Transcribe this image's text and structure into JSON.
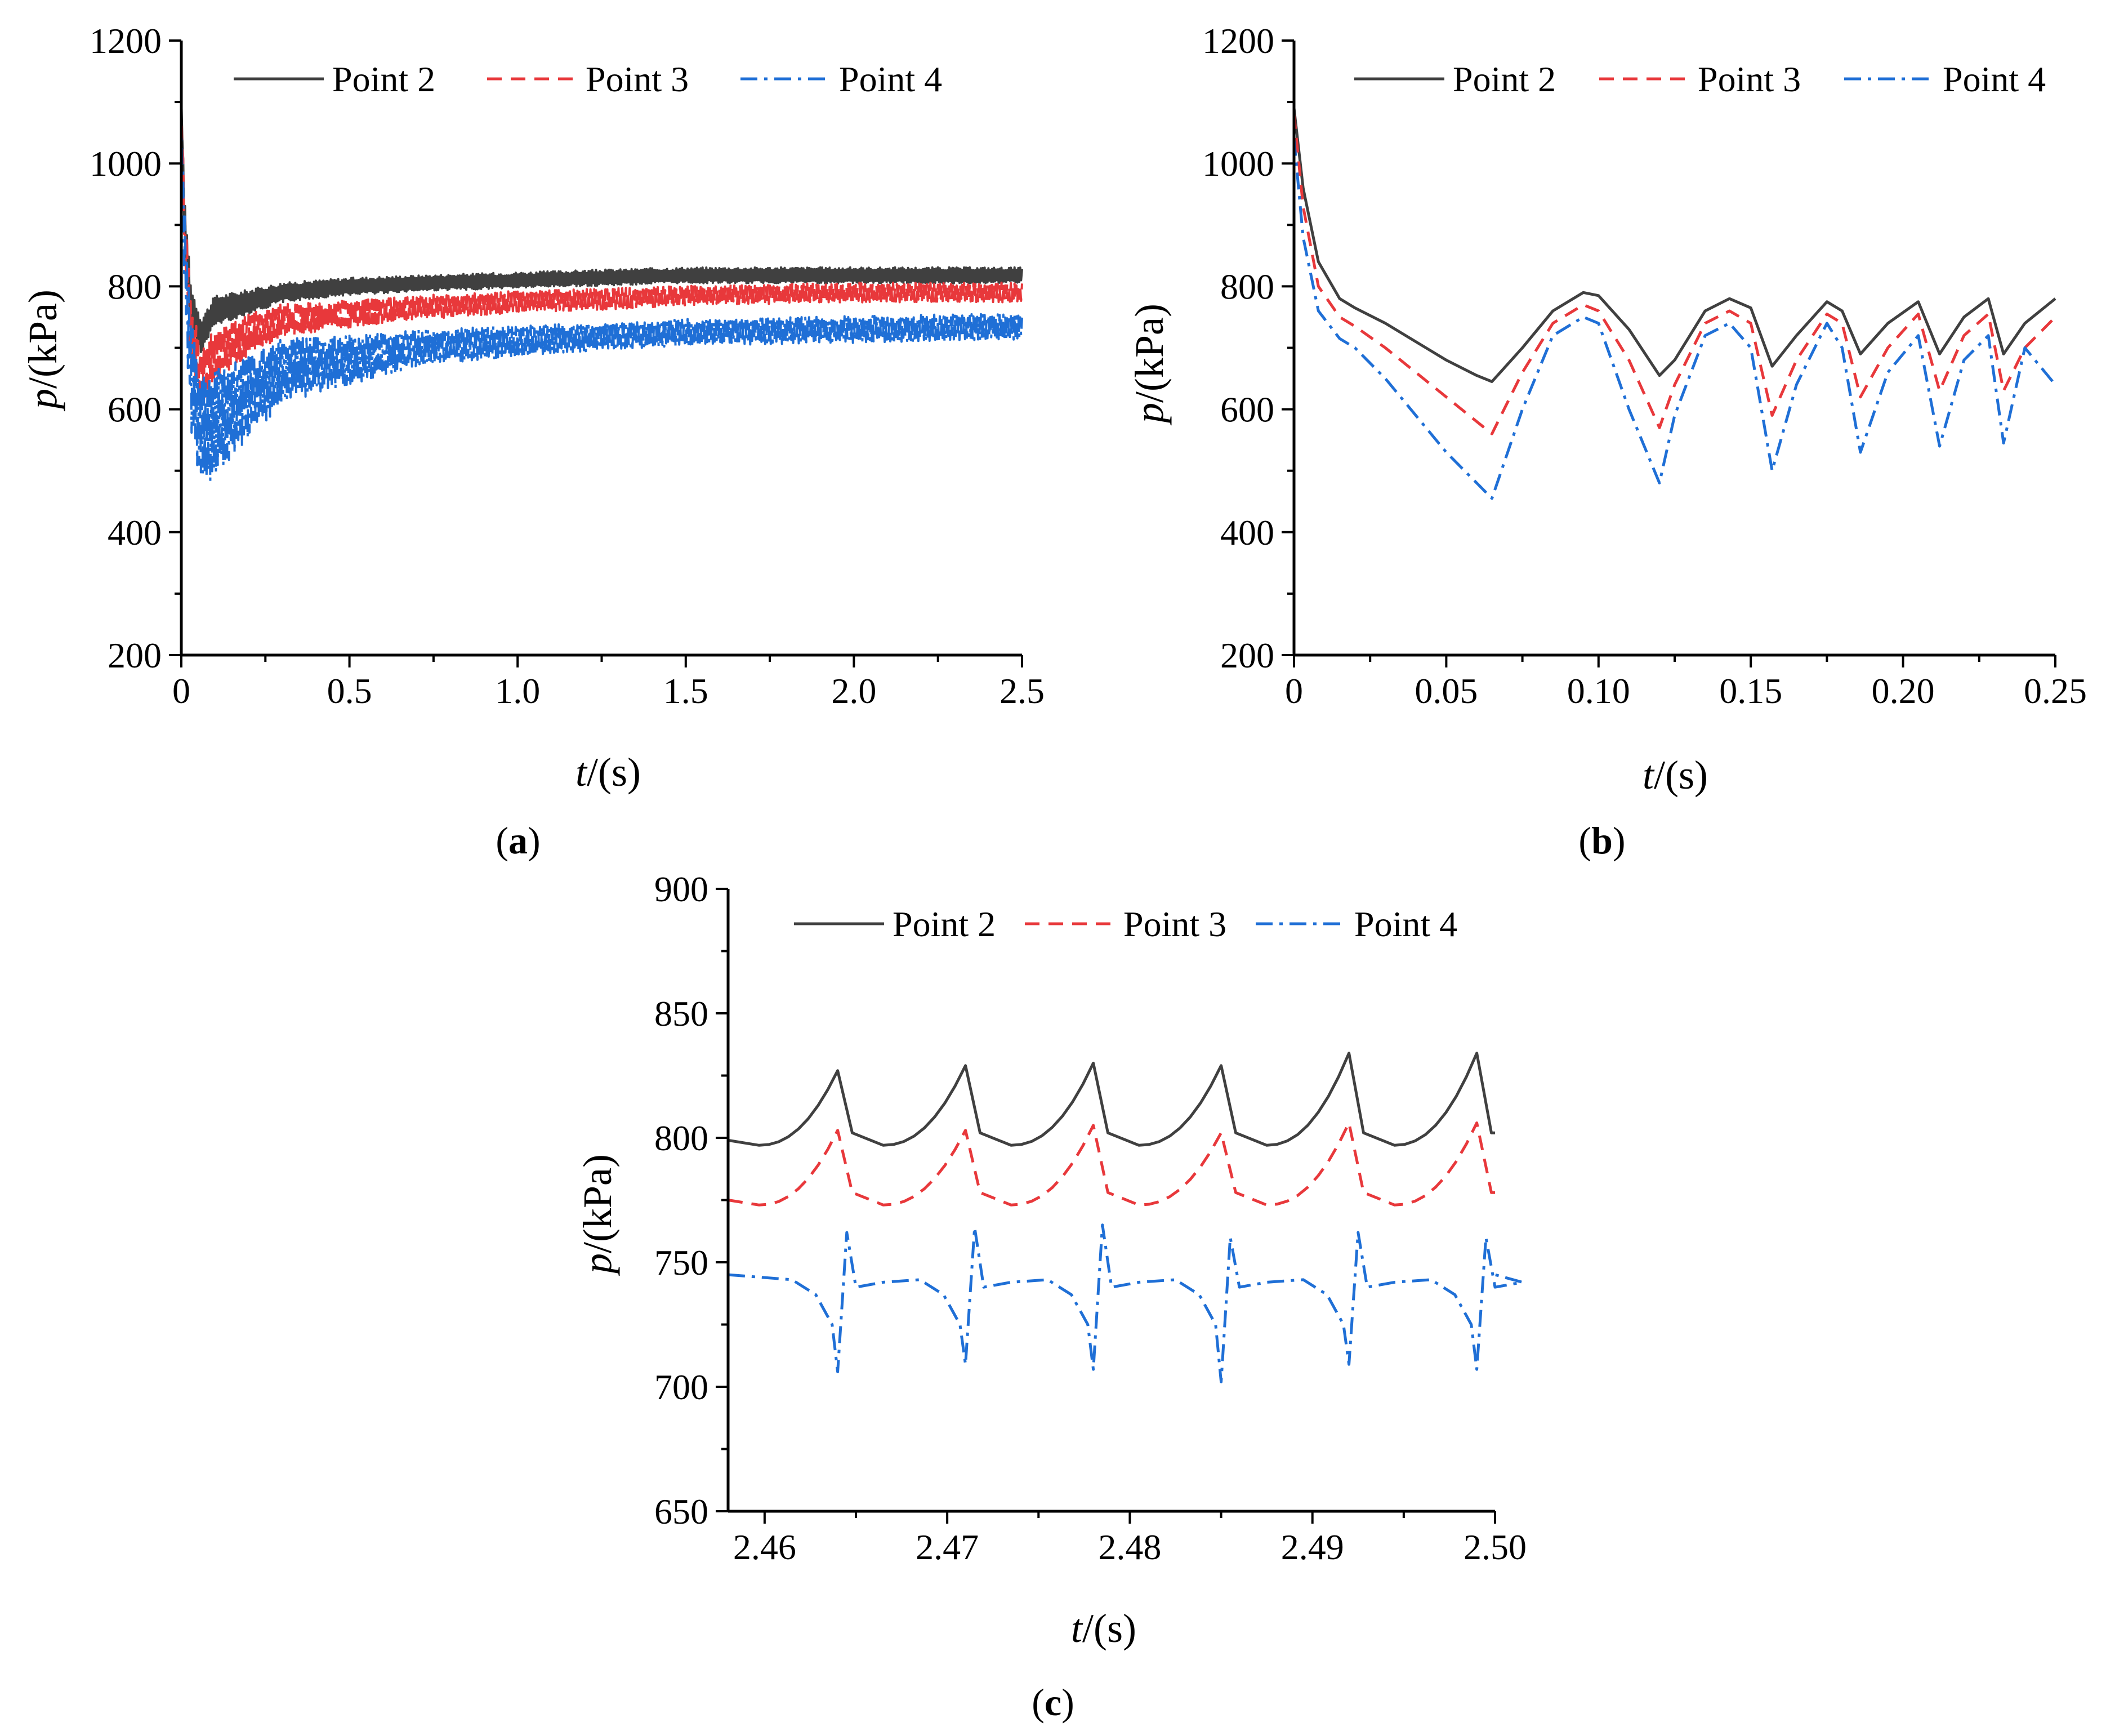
{
  "chart_data": [
    {
      "panel": "a",
      "type": "line",
      "xlabel": {
        "italic": "t",
        "rest": "/(s)"
      },
      "ylabel": {
        "italic": "p",
        "rest": "/(kPa)"
      },
      "xlim": [
        0,
        2.5
      ],
      "ylim": [
        200,
        1200
      ],
      "xticks": [
        0,
        0.5,
        1.0,
        1.5,
        2.0,
        2.5
      ],
      "xtick_labels": [
        "0",
        "0.5",
        "1.0",
        "1.5",
        "2.0",
        "2.5"
      ],
      "yticks": [
        200,
        400,
        600,
        800,
        1000,
        1200
      ],
      "ytick_labels": [
        "200",
        "400",
        "600",
        "800",
        "1000",
        "1200"
      ],
      "legend": [
        "Point 2",
        "Point 3",
        "Point 4"
      ],
      "series": [
        {
          "name": "Point 2",
          "color": "#404040",
          "dash": "solid",
          "x": [
            0,
            0.01,
            0.03,
            0.06,
            0.1,
            0.2,
            0.3,
            0.5,
            0.7,
            1.0,
            1.3,
            1.5,
            2.0,
            2.5
          ],
          "y": [
            1110,
            900,
            760,
            720,
            760,
            775,
            790,
            800,
            805,
            810,
            815,
            818,
            818,
            818
          ],
          "amplitude": [
            0,
            40,
            40,
            30,
            25,
            20,
            16,
            14,
            13,
            13,
            13,
            13,
            13,
            13
          ]
        },
        {
          "name": "Point 3",
          "color": "#e8383b",
          "dash": "dashed",
          "x": [
            0,
            0.01,
            0.03,
            0.06,
            0.1,
            0.2,
            0.3,
            0.5,
            0.7,
            1.0,
            1.3,
            1.5,
            2.0,
            2.5
          ],
          "y": [
            1100,
            880,
            720,
            650,
            690,
            720,
            745,
            755,
            765,
            775,
            780,
            785,
            790,
            790
          ],
          "amplitude": [
            0,
            60,
            55,
            50,
            45,
            35,
            28,
            22,
            20,
            18,
            17,
            16,
            16,
            16
          ]
        },
        {
          "name": "Point 4",
          "color": "#1f6fd6",
          "dash": "dashdot",
          "x": [
            0,
            0.01,
            0.03,
            0.06,
            0.1,
            0.2,
            0.3,
            0.5,
            0.7,
            1.0,
            1.3,
            1.5,
            2.0,
            2.5
          ],
          "y": [
            1080,
            850,
            650,
            560,
            580,
            620,
            660,
            680,
            700,
            712,
            720,
            725,
            730,
            735
          ],
          "amplitude": [
            0,
            90,
            90,
            100,
            90,
            70,
            55,
            40,
            30,
            25,
            22,
            22,
            22,
            22
          ]
        }
      ]
    },
    {
      "panel": "b",
      "type": "line",
      "xlabel": {
        "italic": "t",
        "rest": "/(s)"
      },
      "ylabel": {
        "italic": "p",
        "rest": "/(kPa)"
      },
      "xlim": [
        0,
        0.25
      ],
      "ylim": [
        200,
        1200
      ],
      "xticks": [
        0,
        0.05,
        0.1,
        0.15,
        0.2,
        0.25
      ],
      "xtick_labels": [
        "0",
        "0.05",
        "0.10",
        "0.15",
        "0.20",
        "0.25"
      ],
      "yticks": [
        200,
        400,
        600,
        800,
        1000,
        1200
      ],
      "ytick_labels": [
        "200",
        "400",
        "600",
        "800",
        "1000",
        "1200"
      ],
      "legend": [
        "Point 2",
        "Point 3",
        "Point 4"
      ],
      "series": [
        {
          "name": "Point 2",
          "color": "#404040",
          "dash": "solid",
          "x": [
            0,
            0.003,
            0.008,
            0.015,
            0.02,
            0.03,
            0.04,
            0.05,
            0.06,
            0.065,
            0.075,
            0.085,
            0.095,
            0.1,
            0.11,
            0.12,
            0.125,
            0.135,
            0.143,
            0.15,
            0.157,
            0.165,
            0.175,
            0.18,
            0.186,
            0.195,
            0.205,
            0.212,
            0.22,
            0.228,
            0.233,
            0.24,
            0.25
          ],
          "y": [
            1090,
            960,
            840,
            780,
            765,
            740,
            710,
            680,
            655,
            645,
            700,
            760,
            790,
            785,
            730,
            655,
            680,
            760,
            780,
            765,
            670,
            720,
            775,
            760,
            690,
            740,
            775,
            690,
            750,
            780,
            690,
            740,
            780
          ]
        },
        {
          "name": "Point 3",
          "color": "#e8383b",
          "dash": "dashed",
          "x": [
            0,
            0.003,
            0.008,
            0.015,
            0.02,
            0.03,
            0.04,
            0.05,
            0.06,
            0.065,
            0.075,
            0.085,
            0.095,
            0.1,
            0.11,
            0.12,
            0.125,
            0.135,
            0.143,
            0.15,
            0.157,
            0.165,
            0.175,
            0.18,
            0.186,
            0.195,
            0.205,
            0.212,
            0.22,
            0.228,
            0.233,
            0.24,
            0.25
          ],
          "y": [
            1080,
            930,
            800,
            750,
            735,
            700,
            660,
            620,
            580,
            560,
            660,
            740,
            770,
            760,
            680,
            570,
            640,
            740,
            760,
            740,
            590,
            680,
            755,
            740,
            620,
            700,
            755,
            630,
            720,
            755,
            630,
            700,
            750
          ]
        },
        {
          "name": "Point 4",
          "color": "#1f6fd6",
          "dash": "dashdot",
          "x": [
            0,
            0.003,
            0.008,
            0.015,
            0.02,
            0.03,
            0.04,
            0.05,
            0.06,
            0.065,
            0.075,
            0.085,
            0.095,
            0.1,
            0.11,
            0.12,
            0.125,
            0.135,
            0.143,
            0.15,
            0.157,
            0.165,
            0.175,
            0.18,
            0.186,
            0.195,
            0.205,
            0.212,
            0.22,
            0.228,
            0.233,
            0.24,
            0.25
          ],
          "y": [
            1040,
            880,
            760,
            715,
            700,
            650,
            590,
            530,
            480,
            455,
            600,
            720,
            750,
            740,
            600,
            480,
            590,
            720,
            740,
            700,
            500,
            640,
            740,
            700,
            530,
            660,
            720,
            540,
            680,
            720,
            545,
            700,
            640
          ]
        }
      ]
    },
    {
      "panel": "c",
      "type": "line",
      "xlabel": {
        "italic": "t",
        "rest": "/(s)"
      },
      "ylabel": {
        "italic": "p",
        "rest": "/(kPa)"
      },
      "xlim": [
        2.458,
        2.5
      ],
      "ylim": [
        650,
        900
      ],
      "xticks": [
        2.46,
        2.47,
        2.48,
        2.49,
        2.5
      ],
      "xtick_labels": [
        "2.46",
        "2.47",
        "2.48",
        "2.49",
        "2.50"
      ],
      "yticks": [
        650,
        700,
        750,
        800,
        850,
        900
      ],
      "ytick_labels": [
        "650",
        "700",
        "750",
        "800",
        "850",
        "900"
      ],
      "legend": [
        "Point 2",
        "Point 3",
        "Point 4"
      ],
      "period": 0.007,
      "first_peak": 2.464,
      "series": [
        {
          "name": "Point 2",
          "color": "#404040",
          "dash": "solid",
          "shape": "sawtooth",
          "base": 797,
          "peaks": [
            827,
            829,
            830,
            829,
            834,
            834
          ]
        },
        {
          "name": "Point 3",
          "color": "#e8383b",
          "dash": "dashed",
          "shape": "sawtooth",
          "base": 773,
          "peaks": [
            803,
            803,
            805,
            802,
            806,
            806
          ]
        },
        {
          "name": "Point 4",
          "color": "#1f6fd6",
          "dash": "dashdot",
          "shape": "dip-spike",
          "base": 745,
          "dips": [
            706,
            709,
            707,
            702,
            709,
            707
          ],
          "spikes": [
            762,
            764,
            765,
            760,
            762,
            760
          ]
        }
      ]
    }
  ],
  "panel_labels": [
    "a",
    "b",
    "c"
  ]
}
